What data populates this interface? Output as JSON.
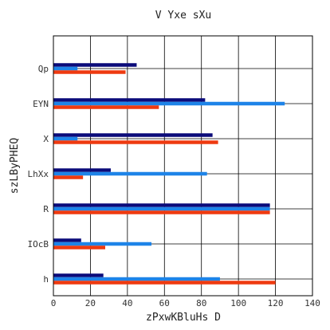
{
  "chart_data": {
    "type": "bar",
    "orientation": "horizontal",
    "title": "V Yxe sXu",
    "xlabel": "zPxwKBluHs D",
    "ylabel": "szLByPHEQ",
    "categories": [
      "h",
      "IOcB",
      "R",
      "LhXx",
      "X",
      "EYN",
      "Qp"
    ],
    "series": [
      {
        "color": "#0b0b7a",
        "values": [
          27,
          15,
          117,
          31,
          86,
          82,
          45
        ]
      },
      {
        "color": "#1e84e8",
        "values": [
          90,
          53,
          117,
          83,
          13,
          125,
          13
        ]
      },
      {
        "color": "#ee3a10",
        "values": [
          120,
          28,
          117,
          16,
          89,
          57,
          39
        ]
      }
    ],
    "xlim": [
      0,
      140
    ],
    "xticks": [
      0,
      20,
      40,
      60,
      80,
      100,
      120,
      140
    ],
    "grid": true
  }
}
